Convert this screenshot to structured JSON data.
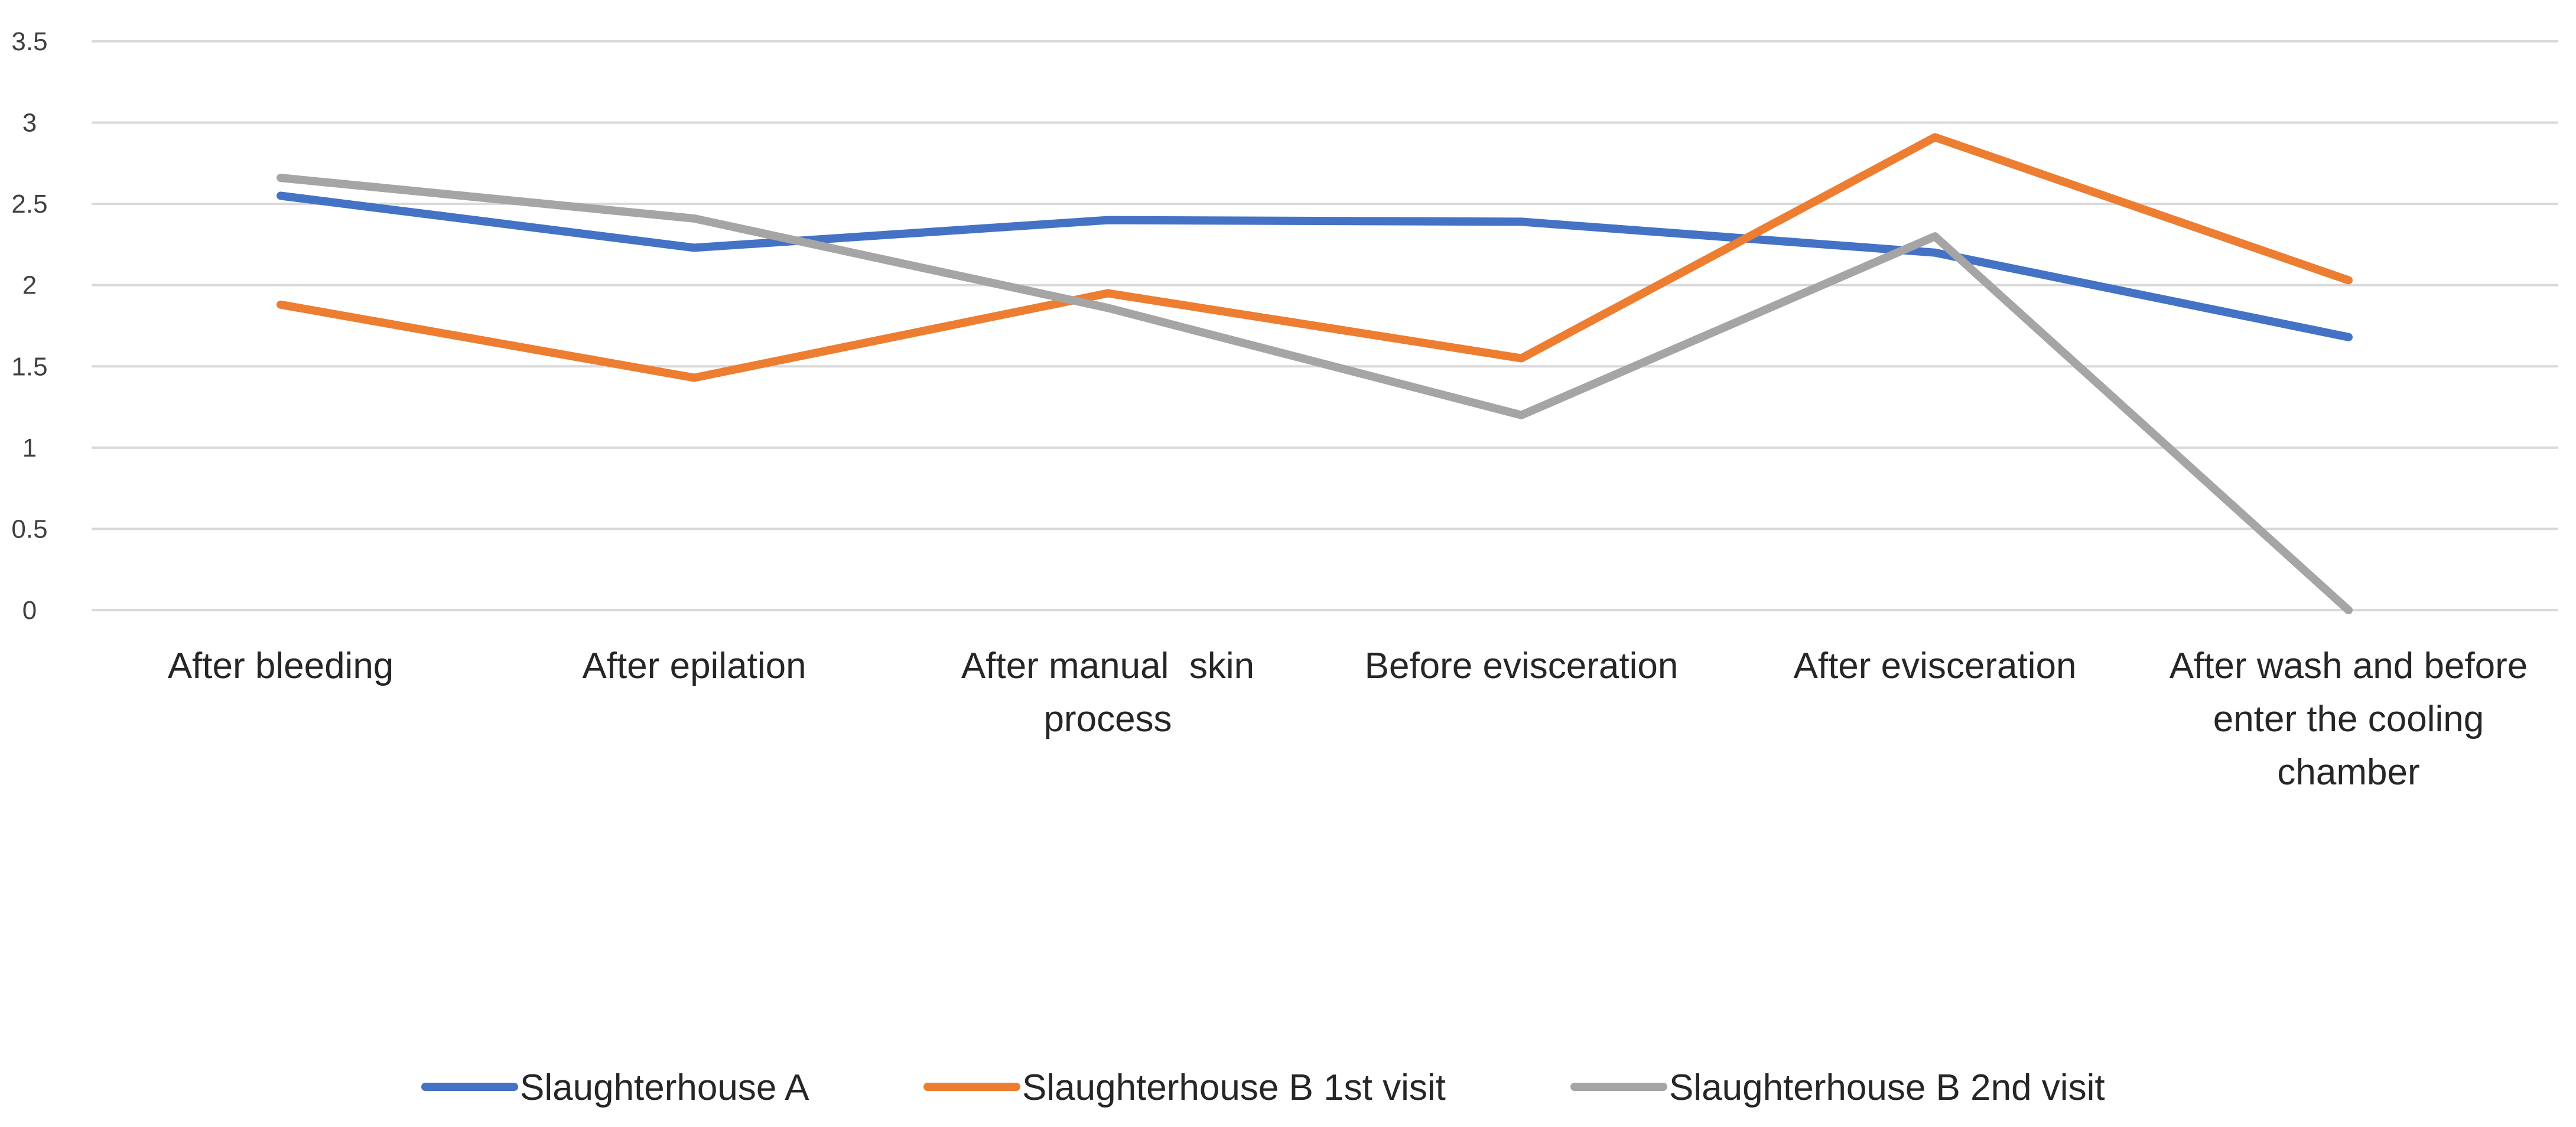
{
  "chart_data": {
    "type": "line",
    "title": "",
    "xlabel": "",
    "ylabel": "",
    "ylim": [
      0,
      3.5
    ],
    "y_ticks": [
      "0",
      "0.5",
      "1",
      "1.5",
      "2",
      "2.5",
      "3",
      "3.5"
    ],
    "y_tick_values": [
      0,
      0.5,
      1,
      1.5,
      2,
      2.5,
      3,
      3.5
    ],
    "grid": true,
    "legend_position": "bottom",
    "categories": [
      [
        "After bleeding"
      ],
      [
        "After epilation"
      ],
      [
        "After manual  skin",
        "process"
      ],
      [
        "Before evisceration"
      ],
      [
        "After evisceration"
      ],
      [
        "After wash and before",
        "enter the cooling",
        "chamber"
      ]
    ],
    "series": [
      {
        "name": "Slaughterhouse A",
        "color": "#4472C4",
        "values": [
          2.55,
          2.23,
          2.4,
          2.39,
          2.2,
          1.68
        ]
      },
      {
        "name": "Slaughterhouse B 1st visit",
        "color": "#ED7D31",
        "values": [
          1.88,
          1.43,
          1.95,
          1.55,
          2.91,
          2.03
        ]
      },
      {
        "name": "Slaughterhouse B 2nd visit",
        "color": "#A5A5A5",
        "values": [
          2.66,
          2.41,
          1.86,
          1.2,
          2.3,
          0.0
        ]
      }
    ]
  }
}
